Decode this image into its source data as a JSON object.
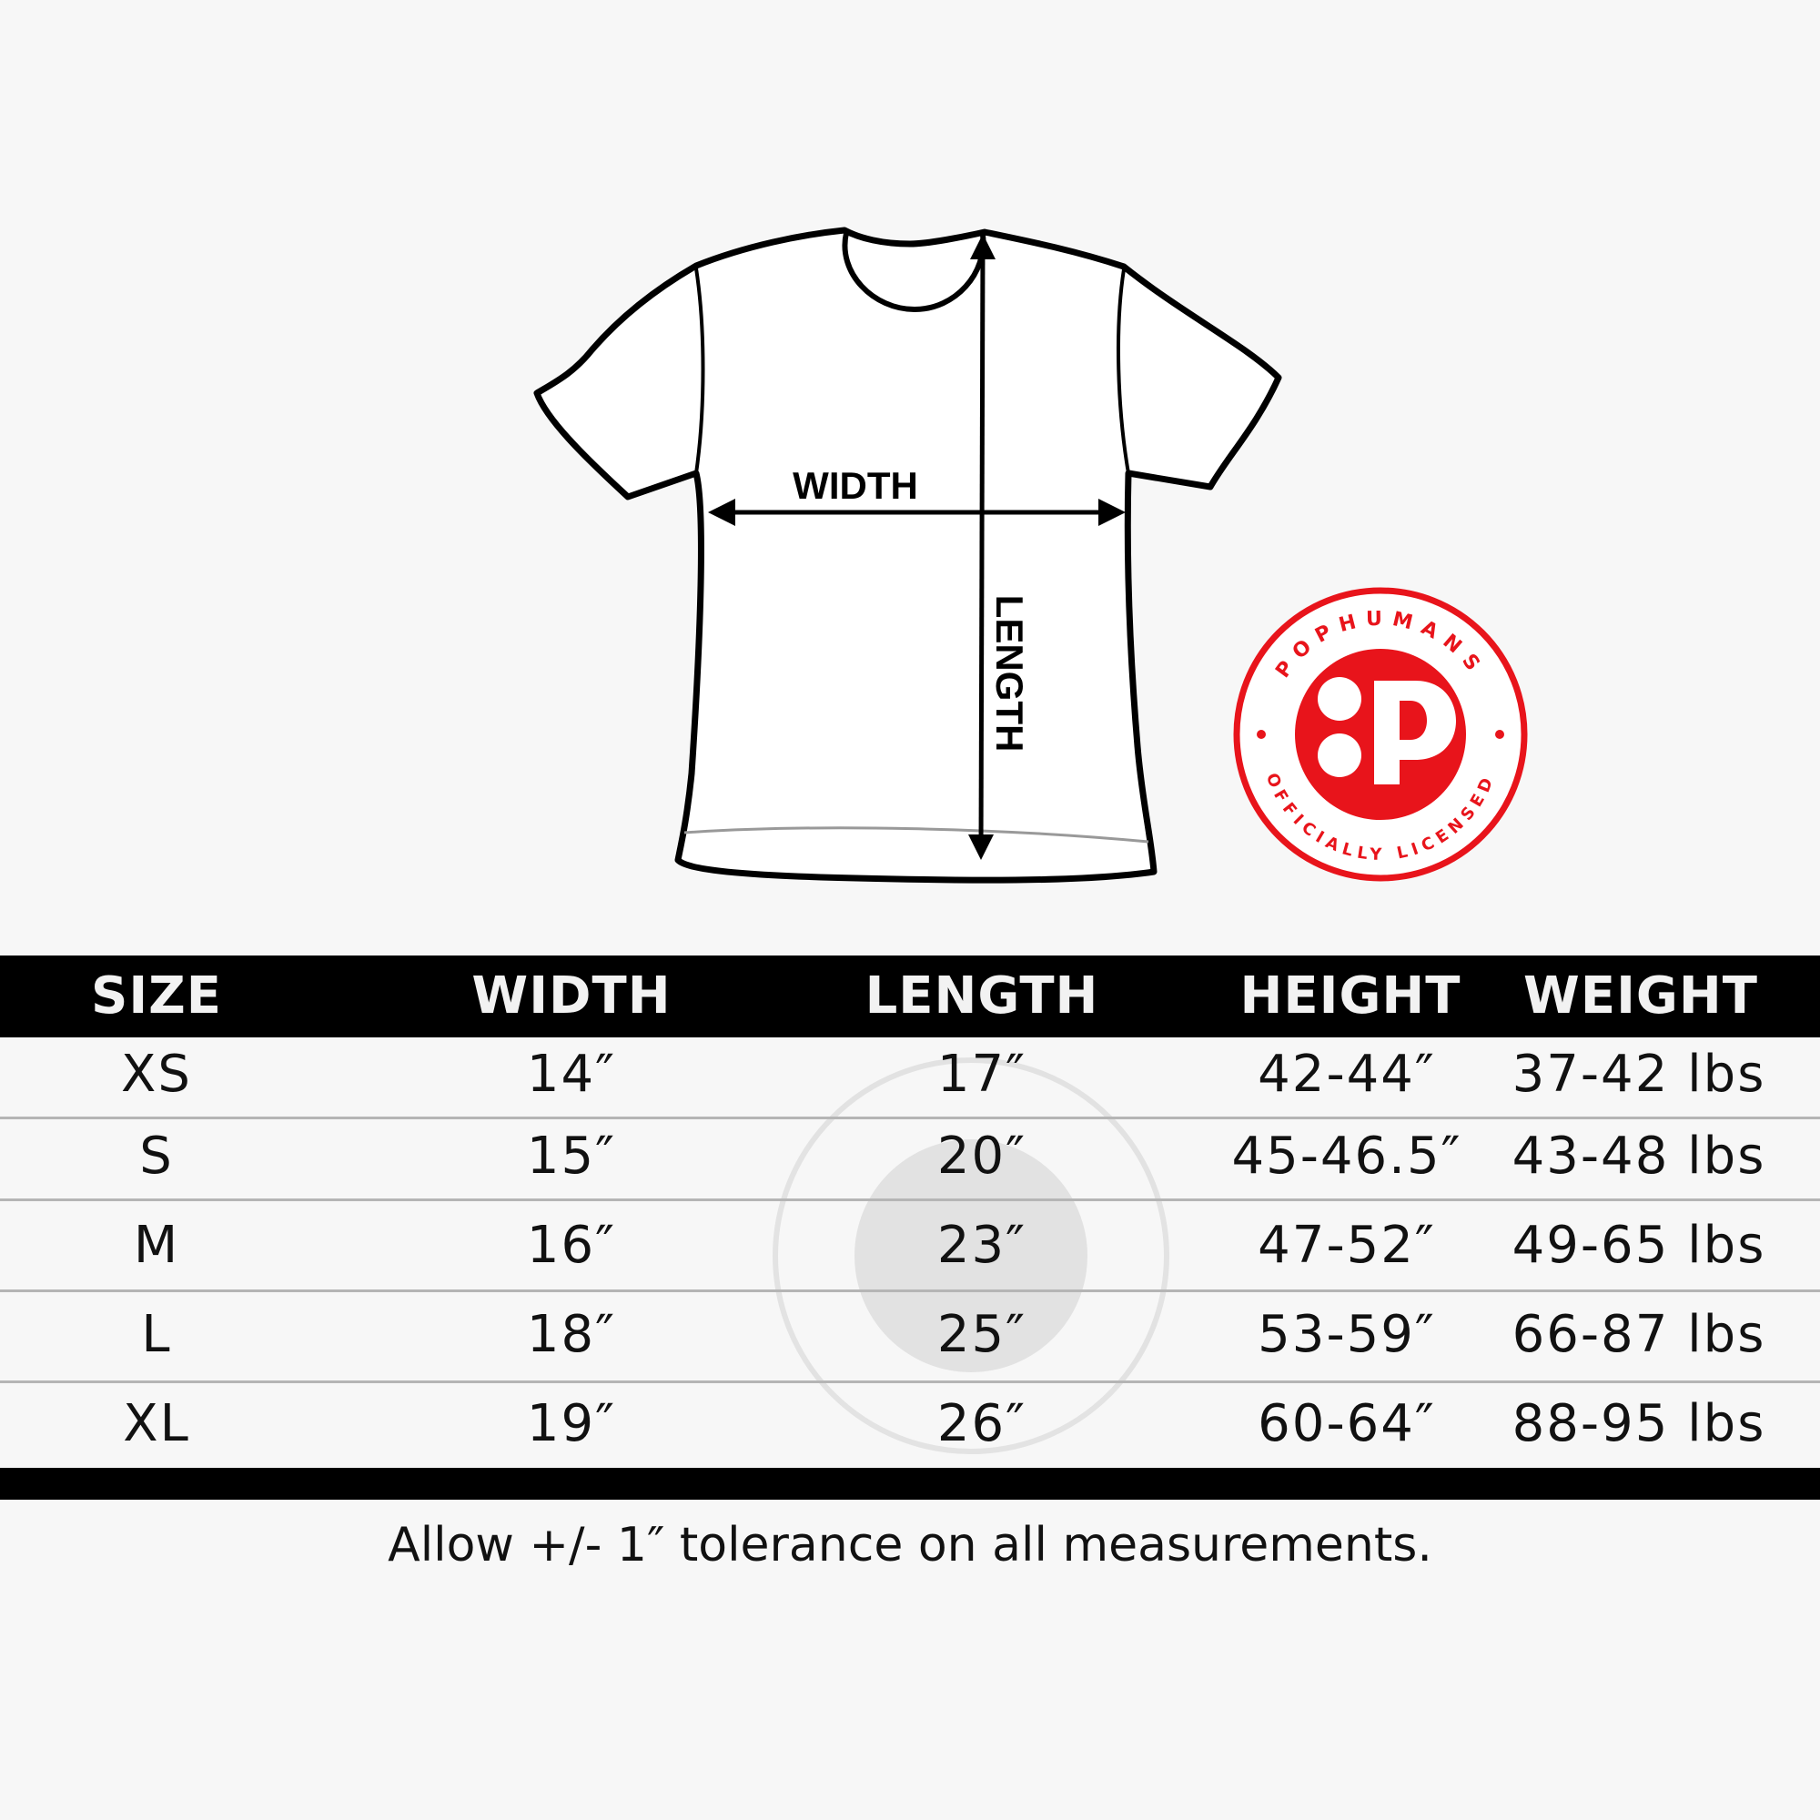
{
  "diagram": {
    "width_label": "WIDTH",
    "length_label": "LENGTH"
  },
  "badge": {
    "brand": "POPHUMANS",
    "tagline": "OFFICIALLY LICENSED",
    "color": "#e8141b"
  },
  "table": {
    "headers": [
      "SIZE",
      "WIDTH",
      "LENGTH",
      "HEIGHT",
      "WEIGHT"
    ],
    "rows": [
      [
        "XS",
        "14″",
        "17″",
        "42-44″",
        "37-42 lbs"
      ],
      [
        "S",
        "15″",
        "20″",
        "45-46.5″",
        "43-48 lbs"
      ],
      [
        "M",
        "16″",
        "23″",
        "47-52″",
        "49-65 lbs"
      ],
      [
        "L",
        "18″",
        "25″",
        "53-59″",
        "66-87 lbs"
      ],
      [
        "XL",
        "19″",
        "26″",
        "60-64″",
        "88-95 lbs"
      ]
    ]
  },
  "footer": {
    "note": "Allow +/- 1″ tolerance on all measurements."
  }
}
